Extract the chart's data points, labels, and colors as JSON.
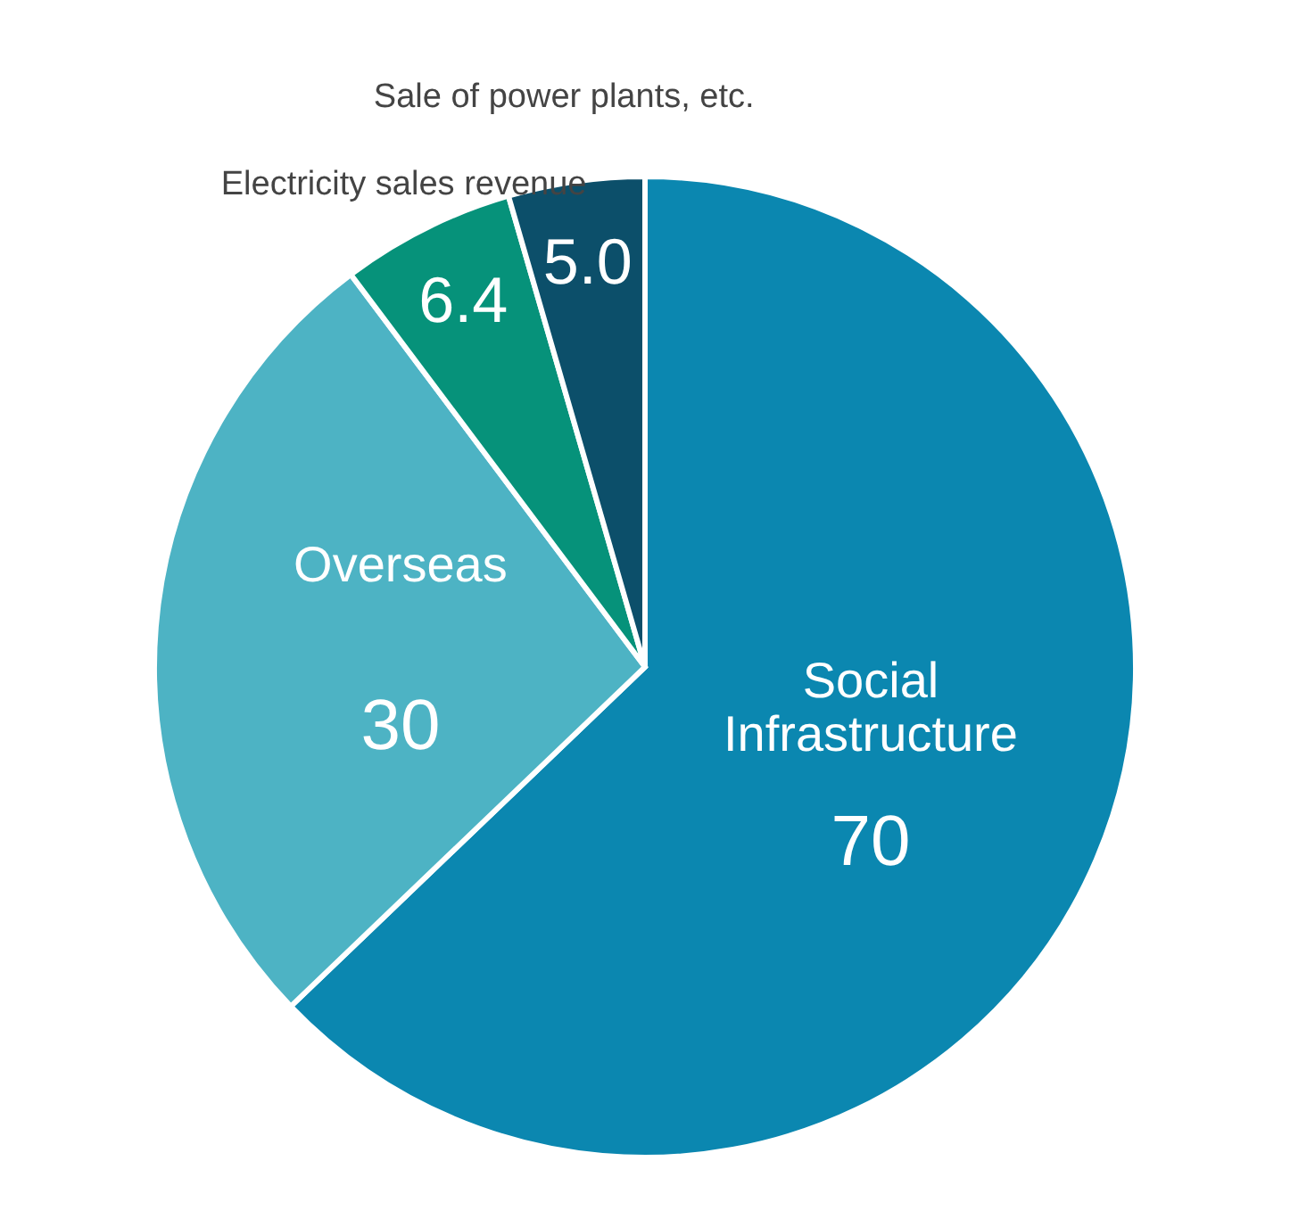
{
  "chart_data": {
    "type": "pie",
    "categories": [
      "Social Infrastructure",
      "Overseas",
      "Electricity sales revenue",
      "Sale of power plants, etc."
    ],
    "values": [
      70,
      30,
      6.4,
      5.0
    ],
    "colors": [
      "#0b87b0",
      "#4db3c4",
      "#06927a",
      "#0c4f6a"
    ],
    "value_labels": [
      "70",
      "30",
      "6.4",
      "5.0"
    ]
  }
}
